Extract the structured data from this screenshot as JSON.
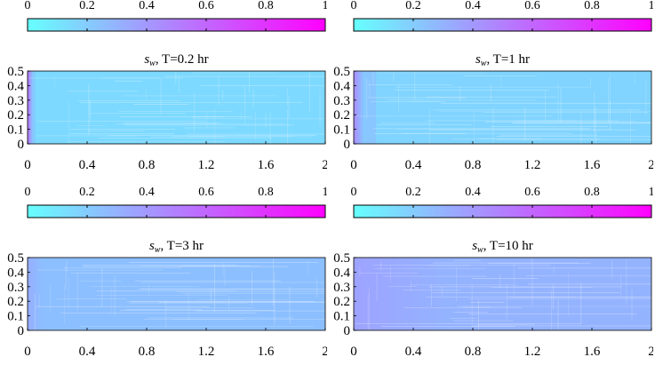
{
  "colormap": {
    "name": "cool",
    "low_color": "#66ffff",
    "high_color": "#ff00ff"
  },
  "chart_data": [
    {
      "type": "heatmap",
      "title_var": "s",
      "title_sub": "w",
      "title_rest": ", T=0.2 hr",
      "xlim": [
        0,
        2
      ],
      "ylim": [
        0,
        0.5
      ],
      "xticks": [
        "0",
        "0.4",
        "0.8",
        "1.2",
        "1.6",
        "2"
      ],
      "yticks": [
        "0",
        "0.1",
        "0.2",
        "0.3",
        "0.4",
        "0.5"
      ],
      "colorbar": {
        "ticks": [
          "0",
          "0.2",
          "0.4",
          "0.6",
          "0.8",
          "1"
        ],
        "range": [
          0,
          1
        ]
      },
      "field": {
        "background": 0.15,
        "inlet_value": 0.55,
        "inlet_width": 0.04,
        "front_x": 0.05
      }
    },
    {
      "type": "heatmap",
      "title_var": "s",
      "title_sub": "w",
      "title_rest": ", T=1 hr",
      "xlim": [
        0,
        2
      ],
      "ylim": [
        0,
        0.5
      ],
      "xticks": [
        "0",
        "0.4",
        "0.8",
        "1.2",
        "1.6",
        "2"
      ],
      "yticks": [
        "0",
        "0.1",
        "0.2",
        "0.3",
        "0.4",
        "0.5"
      ],
      "colorbar": {
        "ticks": [
          "0",
          "0.2",
          "0.4",
          "0.6",
          "0.8",
          "1"
        ],
        "range": [
          0,
          1
        ]
      },
      "field": {
        "background": 0.17,
        "inlet_value": 0.45,
        "inlet_width": 0.08,
        "front_x": 0.15
      }
    },
    {
      "type": "heatmap",
      "title_var": "s",
      "title_sub": "w",
      "title_rest": ", T=3 hr",
      "xlim": [
        0,
        2
      ],
      "ylim": [
        0,
        0.5
      ],
      "xticks": [
        "0",
        "0.4",
        "0.8",
        "1.2",
        "1.6",
        "2"
      ],
      "yticks": [
        "0",
        "0.1",
        "0.2",
        "0.3",
        "0.4",
        "0.5"
      ],
      "colorbar": {
        "ticks": [
          "0",
          "0.2",
          "0.4",
          "0.6",
          "0.8",
          "1"
        ],
        "range": [
          0,
          1
        ]
      },
      "field": {
        "background": 0.25,
        "inlet_value": 0.32,
        "inlet_width": 0.1,
        "front_x": 2.0
      }
    },
    {
      "type": "heatmap",
      "title_var": "s",
      "title_sub": "w",
      "title_rest": ", T=10 hr",
      "xlim": [
        0,
        2
      ],
      "ylim": [
        0,
        0.5
      ],
      "xticks": [
        "0",
        "0.4",
        "0.8",
        "1.2",
        "1.6",
        "2"
      ],
      "yticks": [
        "0",
        "0.1",
        "0.2",
        "0.3",
        "0.4",
        "0.5"
      ],
      "colorbar": {
        "ticks": [
          "0",
          "0.2",
          "0.4",
          "0.6",
          "0.8",
          "1"
        ],
        "range": [
          0,
          1
        ]
      },
      "field": {
        "background": 0.3,
        "inlet_value": 0.36,
        "inlet_width": 0.6,
        "front_x": 2.0
      }
    }
  ]
}
